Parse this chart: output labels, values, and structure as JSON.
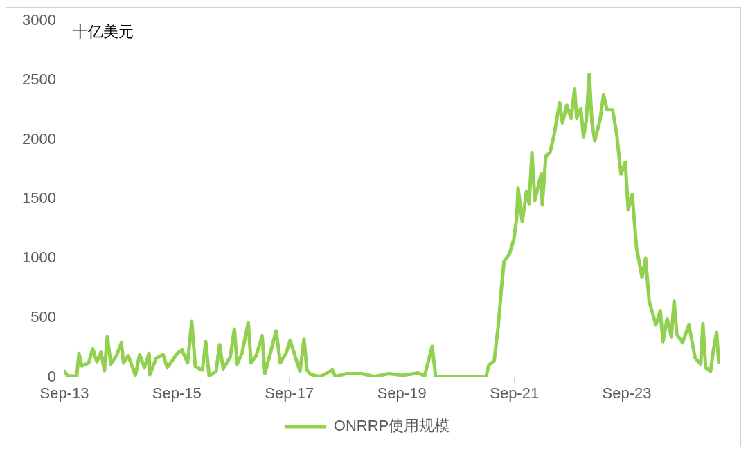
{
  "chart_data": {
    "type": "line",
    "ylabel": "十亿美元",
    "legend": "bottom",
    "grid": false,
    "marker": "none",
    "line_style": "solid",
    "xlim": [
      "2013-09-01",
      "2025-04-30"
    ],
    "xticks": [
      {
        "value": "2013-09-01",
        "label": "Sep-13"
      },
      {
        "value": "2015-09-01",
        "label": "Sep-15"
      },
      {
        "value": "2017-09-01",
        "label": "Sep-17"
      },
      {
        "value": "2019-09-01",
        "label": "Sep-19"
      },
      {
        "value": "2021-09-01",
        "label": "Sep-21"
      },
      {
        "value": "2023-09-01",
        "label": "Sep-23"
      }
    ],
    "ylim": [
      0,
      3000
    ],
    "yticks": [
      0,
      500,
      1000,
      1500,
      2000,
      2500,
      3000
    ],
    "series": [
      {
        "name": "ONRRP使用规模",
        "color": "#92d050",
        "x": [
          "2013-09-01",
          "2013-09-23",
          "2013-11-20",
          "2013-12-05",
          "2013-12-23",
          "2014-02-06",
          "2014-03-04",
          "2014-03-31",
          "2014-04-27",
          "2014-05-19",
          "2014-06-07",
          "2014-06-30",
          "2014-08-05",
          "2014-09-06",
          "2014-09-20",
          "2014-10-21",
          "2014-12-06",
          "2015-01-03",
          "2015-02-03",
          "2015-03-05",
          "2015-03-10",
          "2015-04-20",
          "2015-06-04",
          "2015-07-01",
          "2015-09-04",
          "2015-10-05",
          "2015-11-10",
          "2015-12-07",
          "2015-12-30",
          "2016-02-14",
          "2016-03-07",
          "2016-03-29",
          "2016-05-13",
          "2016-06-05",
          "2016-06-28",
          "2016-08-13",
          "2016-09-09",
          "2016-09-27",
          "2016-10-28",
          "2016-12-08",
          "2016-12-26",
          "2017-01-28",
          "2017-03-08",
          "2017-03-26",
          "2017-05-06",
          "2017-06-07",
          "2017-07-04",
          "2017-08-10",
          "2017-09-06",
          "2017-10-12",
          "2017-11-09",
          "2017-12-05",
          "2017-12-24",
          "2018-01-16",
          "2018-02-25",
          "2018-03-27",
          "2018-06-08",
          "2018-06-26",
          "2018-09-08",
          "2018-12-16",
          "2019-03-06",
          "2019-06-10",
          "2019-09-05",
          "2019-12-17",
          "2020-01-27",
          "2020-03-16",
          "2020-04-08",
          "2020-07-08",
          "2020-11-30",
          "2021-02-28",
          "2021-03-18",
          "2021-04-23",
          "2021-05-20",
          "2021-06-08",
          "2021-06-26",
          "2021-08-01",
          "2021-08-28",
          "2021-09-16",
          "2021-09-25",
          "2021-10-22",
          "2021-11-18",
          "2021-12-06",
          "2021-12-24",
          "2022-01-12",
          "2022-02-22",
          "2022-03-01",
          "2022-03-24",
          "2022-04-20",
          "2022-05-17",
          "2022-06-22",
          "2022-07-10",
          "2022-08-07",
          "2022-09-04",
          "2022-09-27",
          "2022-10-10",
          "2022-11-06",
          "2022-11-24",
          "2022-12-12",
          "2022-12-31",
          "2023-01-18",
          "2023-02-05",
          "2023-03-11",
          "2023-04-03",
          "2023-04-26",
          "2023-06-01",
          "2023-06-28",
          "2023-07-25",
          "2023-08-22",
          "2023-09-10",
          "2023-10-06",
          "2023-11-03",
          "2023-12-09",
          "2024-01-01",
          "2024-01-24",
          "2024-03-08",
          "2024-04-05",
          "2024-04-23",
          "2024-05-20",
          "2024-06-16",
          "2024-07-04",
          "2024-07-22",
          "2024-08-28",
          "2024-10-08",
          "2024-11-18",
          "2024-12-24",
          "2025-01-07",
          "2025-01-25",
          "2025-02-26",
          "2025-03-14",
          "2025-04-06",
          "2025-04-20"
        ],
        "values": [
          50,
          10,
          10,
          200,
          95,
          120,
          240,
          130,
          210,
          55,
          340,
          110,
          180,
          290,
          120,
          180,
          15,
          190,
          80,
          200,
          20,
          160,
          190,
          80,
          200,
          230,
          120,
          470,
          90,
          60,
          300,
          10,
          50,
          275,
          70,
          170,
          405,
          110,
          200,
          460,
          120,
          180,
          345,
          30,
          230,
          390,
          120,
          200,
          310,
          160,
          50,
          320,
          60,
          25,
          10,
          10,
          60,
          5,
          30,
          30,
          5,
          30,
          15,
          35,
          10,
          260,
          5,
          0,
          0,
          0,
          100,
          140,
          440,
          740,
          975,
          1040,
          1160,
          1340,
          1590,
          1310,
          1560,
          1460,
          1890,
          1490,
          1710,
          1450,
          1860,
          1890,
          2040,
          2310,
          2140,
          2290,
          2180,
          2425,
          2180,
          2260,
          2025,
          2165,
          2550,
          2140,
          1990,
          2165,
          2375,
          2250,
          2250,
          2040,
          1710,
          1810,
          1410,
          1540,
          1090,
          840,
          1000,
          640,
          440,
          560,
          300,
          490,
          340,
          640,
          360,
          290,
          440,
          160,
          110,
          450,
          80,
          50,
          210,
          375,
          125
        ]
      }
    ]
  }
}
